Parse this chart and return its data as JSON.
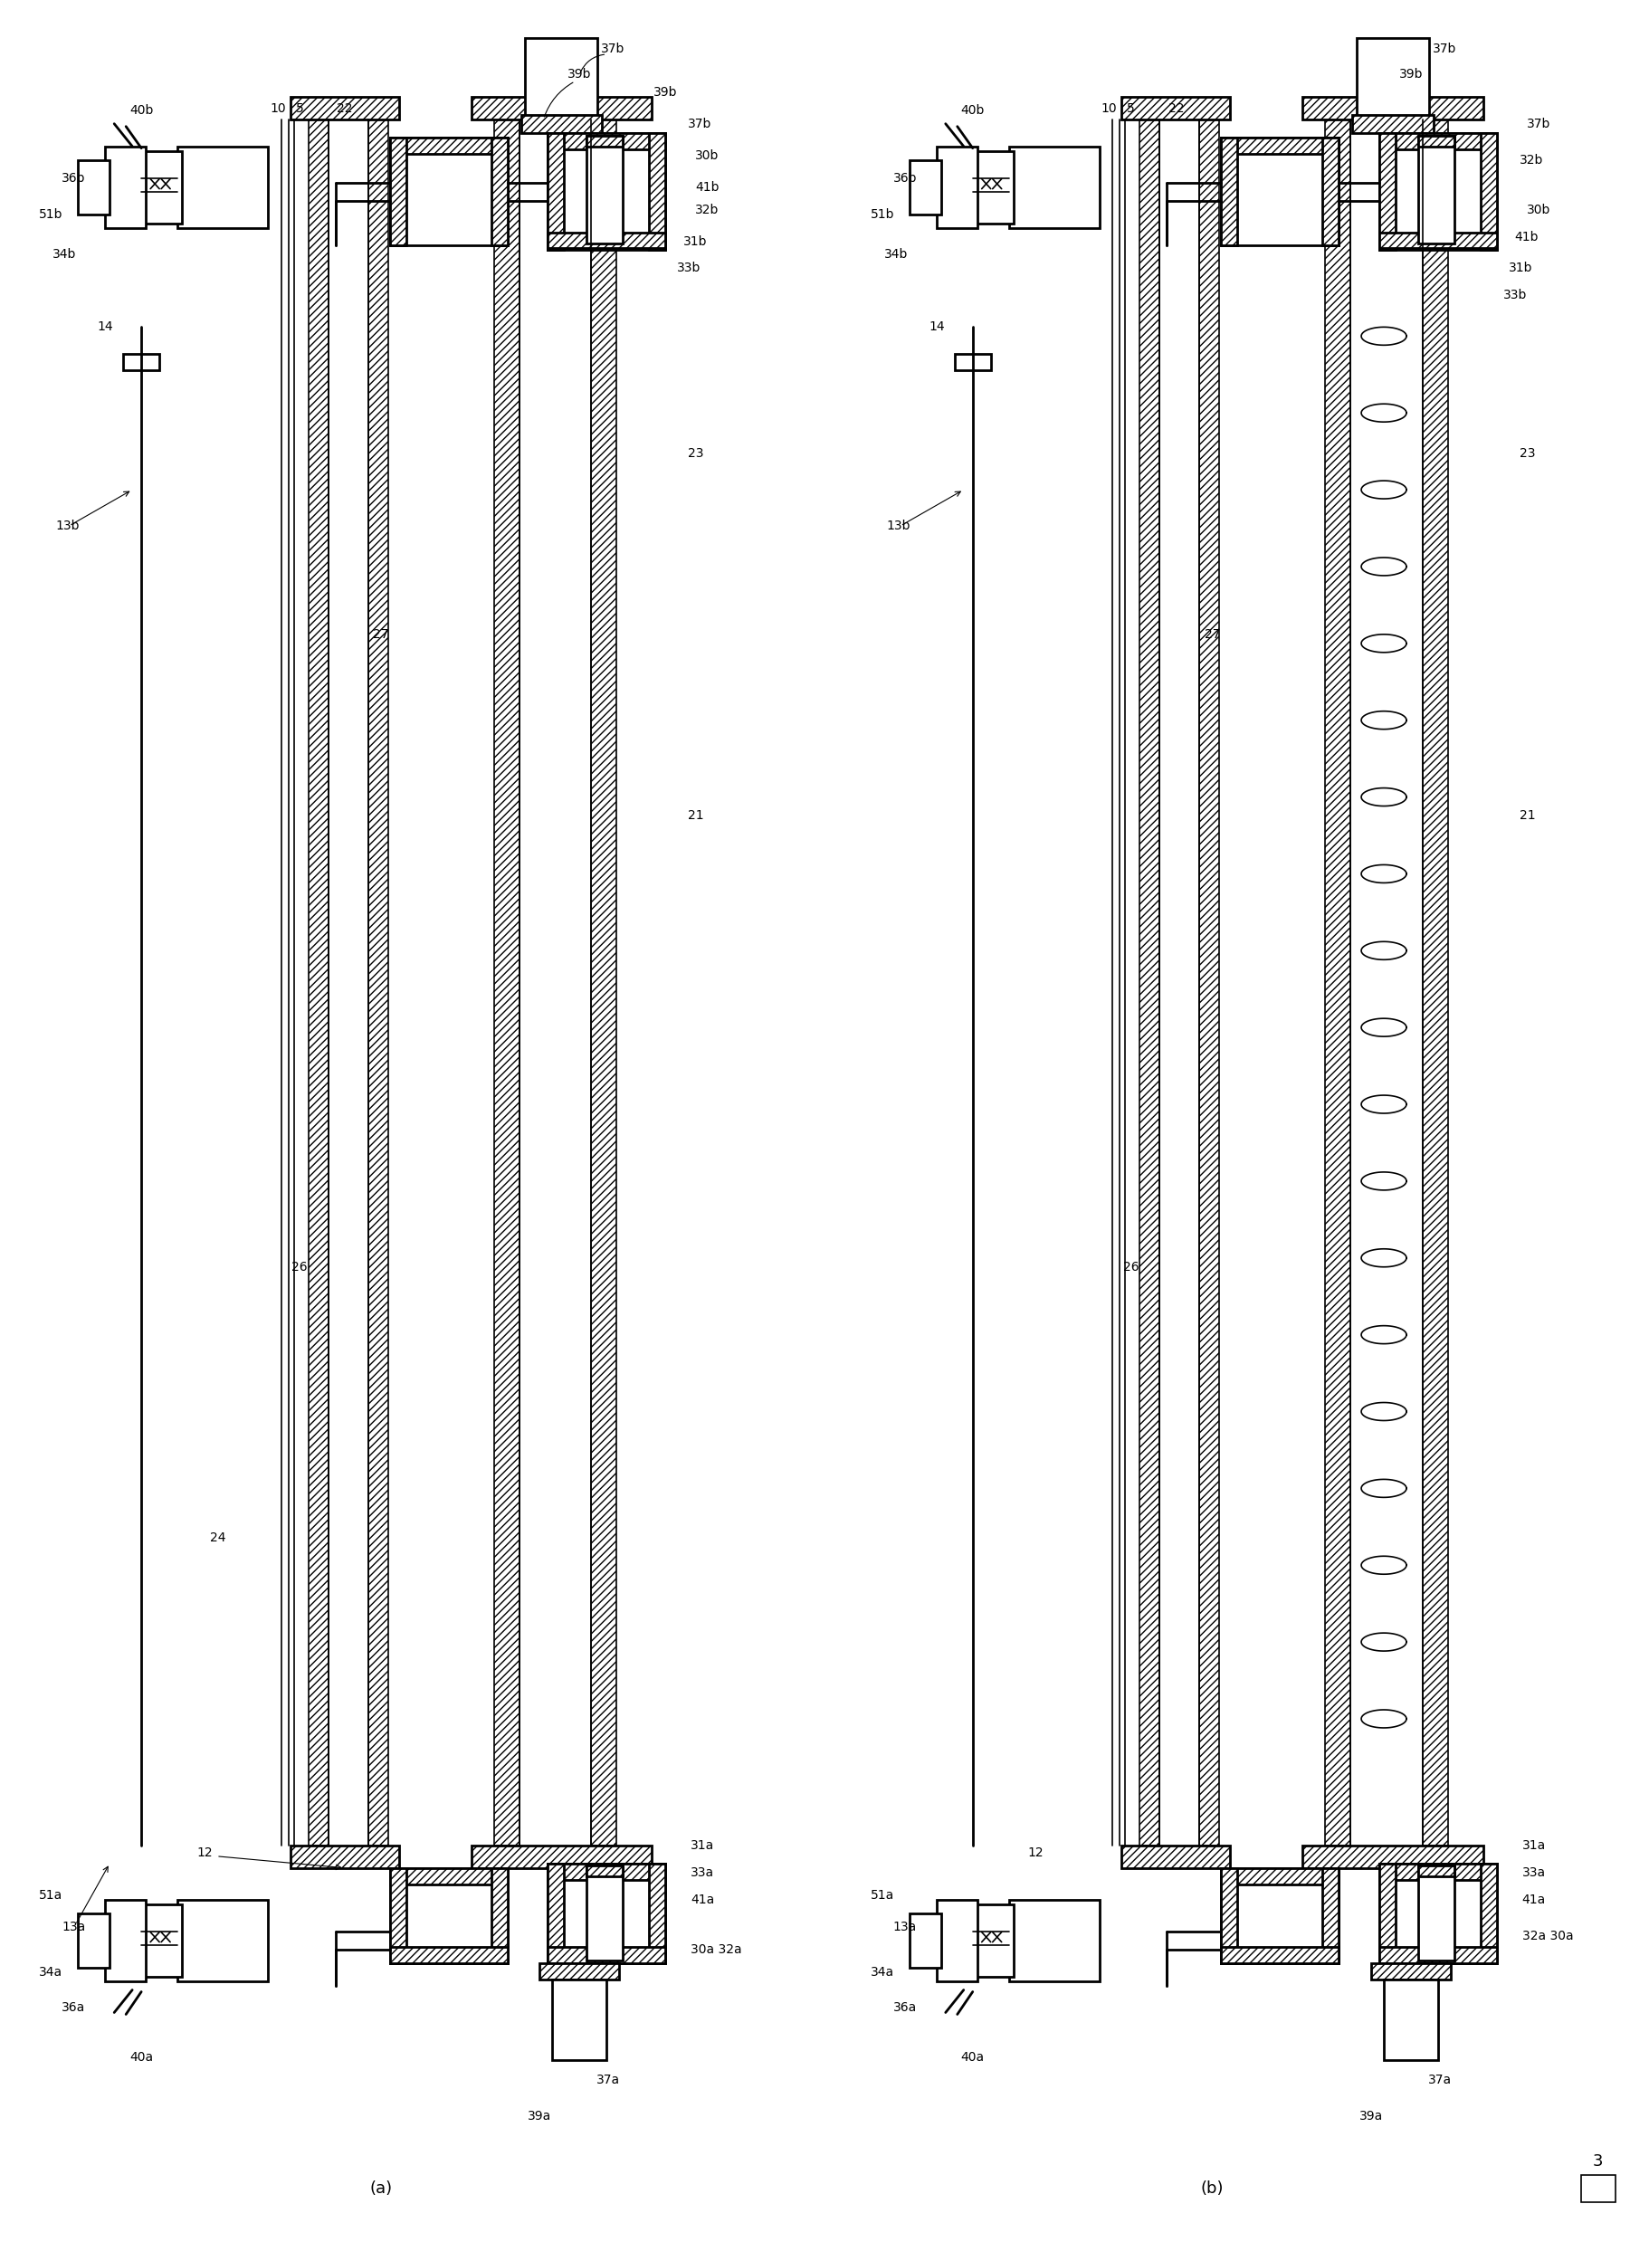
{
  "background_color": "#ffffff",
  "line_color": "#000000",
  "fig_width": 18.01,
  "fig_height": 24.77,
  "label_a": "(a)",
  "label_b": "(b)",
  "figure_number": "3"
}
